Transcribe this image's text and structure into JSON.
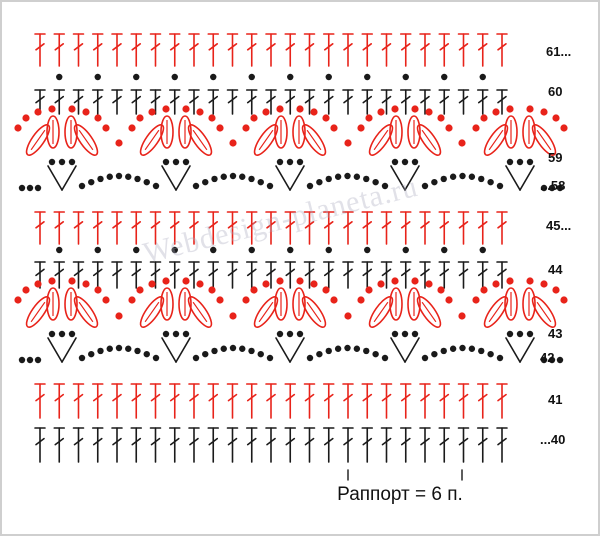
{
  "colors": {
    "red": "#e8231a",
    "black": "#1a1a1a",
    "frame": "#cfcfcf",
    "watermark": "#aaaabe"
  },
  "watermark": "Webdesign-planeta.ru",
  "row_labels": {
    "r61": "61...",
    "r60": "60",
    "r59": "59",
    "r58": "...58",
    "r45": "45...",
    "r44": "44",
    "r43": "43",
    "r42": "42",
    "r41": "41",
    "r40": "...40"
  },
  "rapport": {
    "label": "Раппорт = 6 п."
  },
  "symbols": {
    "stitch_columns": 25,
    "motifs_per_band": 5,
    "bands": 2
  }
}
